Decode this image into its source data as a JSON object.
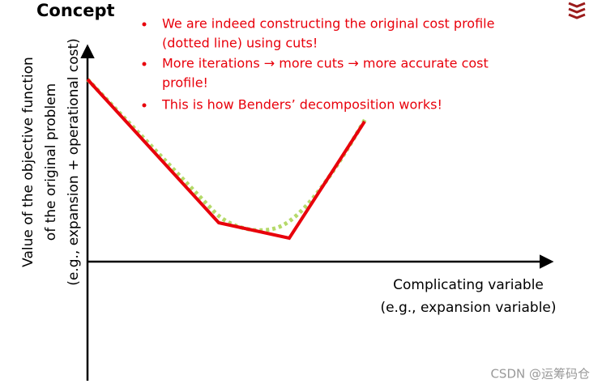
{
  "header": {
    "title": "Concept"
  },
  "bullets": [
    {
      "lines": [
        "We are indeed constructing the original cost profile",
        "(dotted line) using cuts!"
      ]
    },
    {
      "lines": [
        "More iterations → more cuts → more accurate cost",
        "profile!"
      ]
    },
    {
      "lines": [
        "This is how Benders’ decomposition works!"
      ]
    }
  ],
  "y_axis_label": {
    "lines": [
      "Value of the objective function",
      "of the original problem",
      "(e.g., expansion + operational cost)"
    ]
  },
  "x_axis_label": {
    "lines": [
      "Complicating variable",
      "(e.g., expansion variable)"
    ]
  },
  "watermark": "CSDN @运筹码仓"
}
